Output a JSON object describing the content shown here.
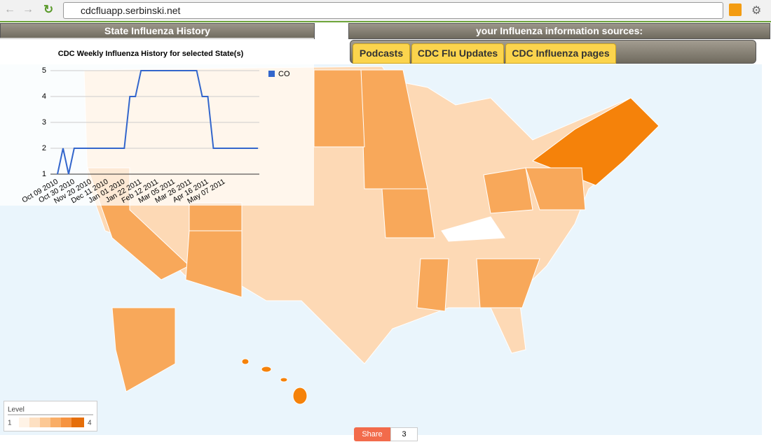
{
  "browser": {
    "url": "cdcfluapp.serbinski.net"
  },
  "left_panel": {
    "title": "State Influenza History"
  },
  "right_panel": {
    "title": "your Influenza information sources:",
    "tabs": [
      "Podcasts",
      "CDC Flu Updates",
      "CDC Influenza pages"
    ]
  },
  "chart_data": {
    "type": "line",
    "title": "CDC Weekly Influenza History for selected State(s)",
    "categories": [
      "Oct 09 2010",
      null,
      null,
      "Oct 30 2010",
      null,
      null,
      "Nov 20 2010",
      null,
      null,
      "Dec 11 2010",
      null,
      null,
      "Jan 01 2010",
      null,
      null,
      "Jan 22 2011",
      null,
      null,
      "Feb 12 2011",
      null,
      null,
      "Mar 05 2011",
      null,
      null,
      "Mar 26 2011",
      null,
      null,
      "Apr 16 2011",
      null,
      null,
      "May 07 2011",
      null,
      null,
      null,
      null,
      null,
      null
    ],
    "series": [
      {
        "name": "CO",
        "color": "#3366cc",
        "values": [
          1,
          2,
          1,
          2,
          2,
          2,
          2,
          2,
          2,
          2,
          2,
          2,
          2,
          4,
          4,
          5,
          5,
          5,
          5,
          5,
          5,
          5,
          5,
          5,
          5,
          5,
          4,
          4,
          2,
          2,
          2,
          2,
          2,
          2,
          2,
          2,
          2
        ]
      }
    ],
    "ylim": [
      1,
      5
    ],
    "yticks": [
      1,
      2,
      3,
      4,
      5
    ],
    "grid": true,
    "legend": "top-right"
  },
  "map_legend": {
    "title": "Level",
    "min": 1,
    "max": 4
  },
  "share": {
    "label": "Share",
    "count": 3
  }
}
